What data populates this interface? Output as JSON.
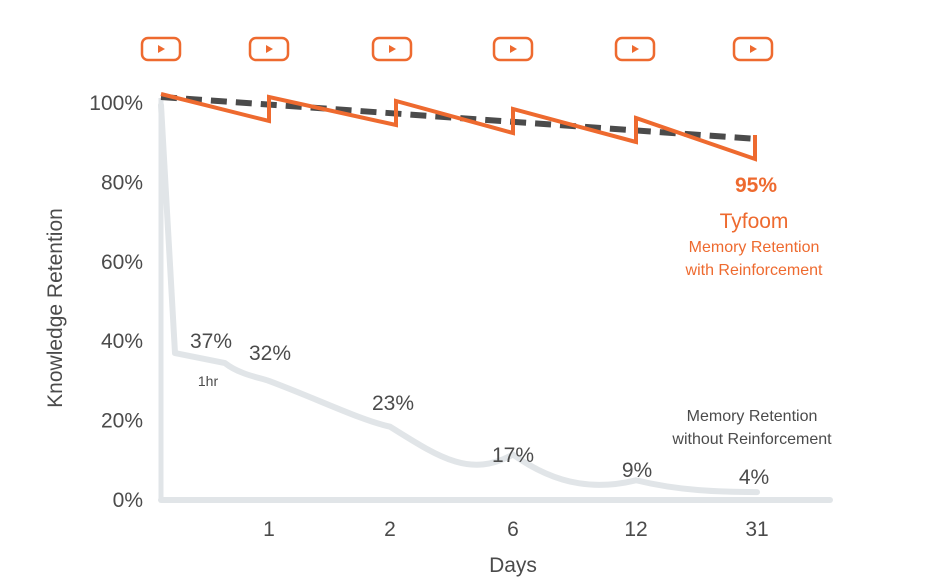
{
  "chart_data": {
    "type": "line",
    "xlabel": "Days",
    "ylabel": "Knowledge Retention",
    "ylim": [
      0,
      100
    ],
    "y_ticks": [
      "0%",
      "20%",
      "40%",
      "60%",
      "80%",
      "100%"
    ],
    "x_ticks": [
      "1",
      "2",
      "6",
      "12",
      "31"
    ],
    "grid": false,
    "series": [
      {
        "name": "Tyfoom",
        "color": "#ee6a2f",
        "final_label": "95%",
        "subtitle": [
          "Memory Retention",
          "with Reinforcement"
        ]
      },
      {
        "name": "",
        "color": "#e1e5e8",
        "subtitle": [
          "Memory Retention",
          "without Reinforcement"
        ],
        "points": [
          {
            "x": "1hr",
            "value": 37,
            "label": "37%"
          },
          {
            "x": "1",
            "value": 32,
            "label": "32%"
          },
          {
            "x": "2",
            "value": 23,
            "label": "23%"
          },
          {
            "x": "6",
            "value": 17,
            "label": "17%"
          },
          {
            "x": "12",
            "value": 9,
            "label": "9%"
          },
          {
            "x": "31",
            "value": 4,
            "label": "4%"
          }
        ]
      },
      {
        "name": "",
        "color": "#4b4b4b",
        "style": "dashed"
      }
    ],
    "icons": [
      "play-icon",
      "play-icon",
      "play-icon",
      "play-icon",
      "play-icon",
      "play-icon"
    ]
  }
}
